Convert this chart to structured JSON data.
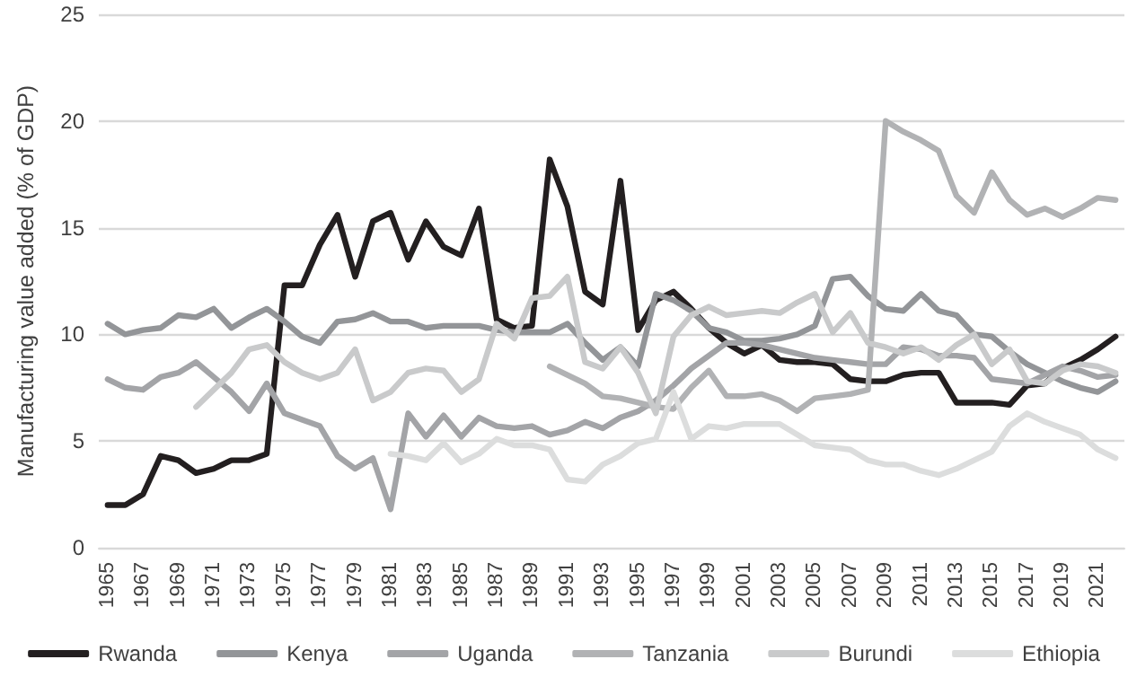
{
  "chart_data": {
    "type": "line",
    "ylabel": "Manufacturing value added (% of GDP)",
    "categories": [
      "1965",
      null,
      "1967",
      null,
      "1969",
      null,
      "1971",
      null,
      "1973",
      null,
      "1975",
      null,
      "1977",
      null,
      "1979",
      null,
      "1981",
      null,
      "1983",
      null,
      "1985",
      null,
      "1987",
      null,
      "1989",
      null,
      "1991",
      null,
      "1993",
      null,
      "1995",
      null,
      "1997",
      null,
      "1999",
      null,
      "2001",
      null,
      "2003",
      null,
      "2005",
      null,
      "2007",
      null,
      "2009",
      null,
      "2011",
      null,
      "2013",
      null,
      "2015",
      null,
      "2017",
      null,
      "2019",
      null,
      "2021",
      null
    ],
    "series": [
      {
        "name": "Rwanda",
        "color": "#231f20",
        "values": [
          2.0,
          2.0,
          2.5,
          4.3,
          4.1,
          3.5,
          3.7,
          4.1,
          4.1,
          4.4,
          12.3,
          12.3,
          14.2,
          15.6,
          12.7,
          15.3,
          15.7,
          13.5,
          15.3,
          14.1,
          13.7,
          15.9,
          10.7,
          10.3,
          10.4,
          18.2,
          16.0,
          12.0,
          11.4,
          17.2,
          10.2,
          11.6,
          12.0,
          11.2,
          10.3,
          9.6,
          9.1,
          9.5,
          8.8,
          8.7,
          8.7,
          8.6,
          7.9,
          7.8,
          7.8,
          8.1,
          8.2,
          8.2,
          6.8,
          6.8,
          6.8,
          6.7,
          7.6,
          7.7,
          8.4,
          8.8,
          9.3,
          9.9
        ]
      },
      {
        "name": "Kenya",
        "color": "#939598",
        "values": [
          10.5,
          10.0,
          10.2,
          10.3,
          10.9,
          10.8,
          11.2,
          10.3,
          10.8,
          11.2,
          10.6,
          9.9,
          9.6,
          10.6,
          10.7,
          11.0,
          10.6,
          10.6,
          10.3,
          10.4,
          10.4,
          10.4,
          10.2,
          10.1,
          10.1,
          10.1,
          10.5,
          9.6,
          8.8,
          9.4,
          8.5,
          11.9,
          11.6,
          11.1,
          10.3,
          10.1,
          9.7,
          9.7,
          9.8,
          10.0,
          10.4,
          12.6,
          12.7,
          11.8,
          11.2,
          11.1,
          11.9,
          11.1,
          10.9,
          10.0,
          9.9,
          9.2,
          8.6,
          8.2,
          7.8,
          7.5,
          7.3,
          7.8
        ]
      },
      {
        "name": "Uganda",
        "color": "#a3a4a7",
        "values": [
          7.9,
          7.5,
          7.4,
          8.0,
          8.2,
          8.7,
          8.0,
          7.3,
          6.4,
          7.7,
          6.3,
          6.0,
          5.7,
          4.3,
          3.7,
          4.2,
          1.8,
          6.3,
          5.2,
          6.2,
          5.2,
          6.1,
          5.7,
          5.6,
          5.7,
          5.3,
          5.5,
          5.9,
          5.6,
          6.1,
          6.4,
          6.9,
          7.6,
          8.4,
          9.0,
          9.6,
          9.6,
          9.5,
          9.3,
          9.1,
          8.9,
          8.8,
          8.7,
          8.6,
          8.6,
          9.4,
          9.3,
          9.0,
          9.0,
          8.9,
          7.9,
          7.8,
          7.7,
          8.1,
          8.5,
          8.3,
          8.0,
          8.1
        ]
      },
      {
        "name": "Tanzania",
        "color": "#b1b2b4",
        "values": [
          null,
          null,
          null,
          null,
          null,
          null,
          null,
          null,
          null,
          null,
          null,
          null,
          null,
          null,
          null,
          null,
          null,
          null,
          null,
          null,
          null,
          null,
          null,
          null,
          null,
          8.5,
          8.1,
          7.7,
          7.1,
          7.0,
          6.8,
          6.6,
          6.5,
          7.5,
          8.3,
          7.1,
          7.1,
          7.2,
          6.9,
          6.4,
          7.0,
          7.1,
          7.2,
          7.4,
          20.0,
          19.5,
          19.1,
          18.6,
          16.5,
          15.7,
          17.6,
          16.3,
          15.6,
          15.9,
          15.5,
          15.9,
          16.4,
          16.3
        ]
      },
      {
        "name": "Burundi",
        "color": "#c9cacb",
        "values": [
          null,
          null,
          null,
          null,
          null,
          6.6,
          7.4,
          8.2,
          9.3,
          9.5,
          8.7,
          8.2,
          7.9,
          8.2,
          9.3,
          6.9,
          7.3,
          8.2,
          8.4,
          8.3,
          7.3,
          7.9,
          10.5,
          9.8,
          11.7,
          11.8,
          12.7,
          8.7,
          8.4,
          9.4,
          8.2,
          6.3,
          9.9,
          10.9,
          11.3,
          10.9,
          11.0,
          11.1,
          11.0,
          11.5,
          11.9,
          10.1,
          11.0,
          9.6,
          9.4,
          9.1,
          9.4,
          8.8,
          9.5,
          10.0,
          8.6,
          9.3,
          7.8,
          7.7,
          8.3,
          8.6,
          8.5,
          8.2
        ]
      },
      {
        "name": "Ethiopia",
        "color": "#dcdddd",
        "values": [
          null,
          null,
          null,
          null,
          null,
          null,
          null,
          null,
          null,
          null,
          null,
          null,
          null,
          null,
          null,
          null,
          4.4,
          4.3,
          4.1,
          4.9,
          4.0,
          4.4,
          5.1,
          4.8,
          4.8,
          4.6,
          3.2,
          3.1,
          3.9,
          4.3,
          4.9,
          5.1,
          7.3,
          5.1,
          5.7,
          5.6,
          5.8,
          5.8,
          5.8,
          5.3,
          4.8,
          4.7,
          4.6,
          4.1,
          3.9,
          3.9,
          3.6,
          3.4,
          3.7,
          4.1,
          4.5,
          5.7,
          6.3,
          5.9,
          5.6,
          5.3,
          4.6,
          4.2
        ]
      }
    ],
    "ylim": [
      0,
      25
    ],
    "yticks": [
      0,
      5,
      10,
      15,
      20,
      25
    ],
    "grid": "y",
    "legend": "bottom",
    "marker": "none",
    "line_style": "solid"
  }
}
